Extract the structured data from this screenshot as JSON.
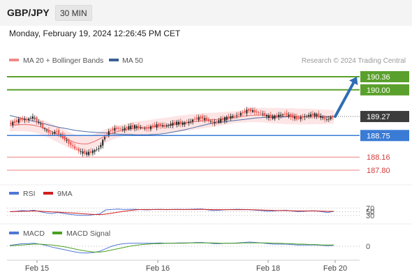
{
  "header": {
    "symbol": "GBP/JPY",
    "timeframe": "30 MIN"
  },
  "datetime": "Monday, February 19, 2024 12:26:45 PM CET",
  "legend": {
    "ma20_label": "MA 20 + Bollinger Bands",
    "ma50_label": "MA 50",
    "credit": "Research © 2024 Trading Central"
  },
  "rsi_legend": {
    "rsi": "RSI",
    "ma": "9MA"
  },
  "macd_legend": {
    "macd": "MACD",
    "signal": "MACD Signal"
  },
  "colors": {
    "candle_up": "#1a1a1a",
    "candle_down": "#e8504a",
    "ma20": "#e86b6b",
    "ma50": "#4f6fa8",
    "bollinger_fill": "#fde0e0",
    "resistance": "#5aa02c",
    "pivot": "#3a7bd5",
    "support": "#f08080",
    "current_price_bg": "#3c3c3c",
    "arrow": "#2e6db4",
    "rsi": "#4f77d6",
    "rsi_ma": "#d02020",
    "macd": "#4f77d6",
    "macd_signal": "#4aa020"
  },
  "chart_data": [
    {
      "type": "candlestick",
      "name": "price",
      "x_ticks": [
        "Feb 15",
        "Feb 16",
        "Feb 18",
        "Feb 20"
      ],
      "ylim": [
        187.4,
        190.55
      ],
      "close_series": [
        189.06,
        189.12,
        189.2,
        189.18,
        189.26,
        189.1,
        188.92,
        188.8,
        188.86,
        188.7,
        188.55,
        188.4,
        188.3,
        188.26,
        188.32,
        188.4,
        188.72,
        188.9,
        188.95,
        188.92,
        188.98,
        189.0,
        188.96,
        188.94,
        189.0,
        189.04,
        189.0,
        189.06,
        189.1,
        189.08,
        189.12,
        189.2,
        189.24,
        189.18,
        189.1,
        189.15,
        189.22,
        189.26,
        189.3,
        189.38,
        189.45,
        189.4,
        189.36,
        189.28,
        189.25,
        189.3,
        189.34,
        189.28,
        189.22,
        189.25,
        189.3,
        189.33,
        189.26,
        189.18,
        189.27
      ],
      "ma20": [
        189.02,
        189.04,
        189.05,
        189.05,
        189.03,
        188.99,
        188.93,
        188.86,
        188.78,
        188.7,
        188.62,
        188.55,
        188.52,
        188.52,
        188.58,
        188.66,
        188.74,
        188.81,
        188.86,
        188.9,
        188.93,
        188.95,
        188.96,
        188.97,
        188.99,
        189.01,
        189.02,
        189.04,
        189.07,
        189.09,
        189.11,
        189.13,
        189.15,
        189.17,
        189.18,
        189.2,
        189.22,
        189.24,
        189.26,
        189.28,
        189.3,
        189.31,
        189.31,
        189.3,
        189.29,
        189.29,
        189.28,
        189.28,
        189.27,
        189.27,
        189.27,
        189.27,
        189.26,
        189.26,
        189.26
      ],
      "ma50": [
        189.3,
        189.26,
        189.22,
        189.18,
        189.14,
        189.1,
        189.06,
        189.02,
        188.98,
        188.95,
        188.92,
        188.89,
        188.87,
        188.85,
        188.84,
        188.83,
        188.82,
        188.8,
        188.79,
        188.78,
        188.78,
        188.77,
        188.77,
        188.77,
        188.78,
        188.79,
        188.81,
        188.84,
        188.87,
        188.9,
        188.94,
        188.98,
        189.02,
        189.06,
        189.09,
        189.11,
        189.13,
        189.15,
        189.17,
        189.19,
        189.21,
        189.23,
        189.24,
        189.25,
        189.25,
        189.26,
        189.26,
        189.27,
        189.27,
        189.27,
        189.27,
        189.27,
        189.27,
        189.27,
        189.27
      ],
      "levels": [
        {
          "role": "resistance",
          "value": 190.36,
          "label": "190.36"
        },
        {
          "role": "resistance",
          "value": 190.0,
          "label": "190.00"
        },
        {
          "role": "current",
          "value": 189.27,
          "label": "189.27"
        },
        {
          "role": "pivot",
          "value": 188.75,
          "label": "188.75"
        },
        {
          "role": "support",
          "value": 188.16,
          "label": "188.16"
        },
        {
          "role": "support",
          "value": 187.8,
          "label": "187.80"
        }
      ],
      "forecast_arrow": {
        "from": 189.27,
        "to": 190.36
      }
    },
    {
      "type": "line",
      "name": "rsi",
      "y_ticks": [
        70,
        50,
        30
      ],
      "ylim": [
        0,
        100
      ],
      "series": [
        {
          "values": [
            50,
            52,
            56,
            54,
            58,
            50,
            44,
            40,
            46,
            40,
            36,
            32,
            30,
            30,
            34,
            38,
            60,
            62,
            64,
            62,
            63,
            63,
            61,
            60,
            62,
            63,
            61,
            62,
            63,
            62,
            63,
            64,
            65,
            60,
            56,
            58,
            61,
            62,
            63,
            62,
            61,
            58,
            56,
            52,
            54,
            56,
            58,
            54,
            50,
            52,
            54,
            55,
            50,
            46,
            52
          ]
        },
        {
          "values": [
            50,
            51,
            52,
            53,
            54,
            53,
            51,
            49,
            48,
            46,
            44,
            42,
            39,
            37,
            35,
            34,
            37,
            42,
            47,
            52,
            56,
            60,
            62,
            62,
            62,
            62,
            62,
            62,
            62,
            62,
            62,
            62,
            63,
            62,
            61,
            61,
            61,
            61,
            61,
            61,
            61,
            60,
            59,
            58,
            57,
            56,
            56,
            55,
            54,
            54,
            54,
            54,
            53,
            52,
            52
          ]
        }
      ]
    },
    {
      "type": "line",
      "name": "macd",
      "y_ticks": [
        0
      ],
      "series": [
        {
          "values": [
            0.02,
            0.04,
            0.06,
            0.06,
            0.07,
            0.05,
            0.02,
            -0.02,
            -0.05,
            -0.08,
            -0.11,
            -0.14,
            -0.16,
            -0.16,
            -0.15,
            -0.12,
            -0.06,
            0.0,
            0.04,
            0.06,
            0.07,
            0.07,
            0.07,
            0.07,
            0.07,
            0.08,
            0.07,
            0.07,
            0.08,
            0.08,
            0.08,
            0.09,
            0.09,
            0.08,
            0.06,
            0.06,
            0.07,
            0.07,
            0.08,
            0.09,
            0.1,
            0.09,
            0.08,
            0.06,
            0.05,
            0.05,
            0.05,
            0.04,
            0.03,
            0.03,
            0.03,
            0.03,
            0.02,
            0.01,
            0.02
          ]
        },
        {
          "values": [
            0.01,
            0.02,
            0.03,
            0.04,
            0.05,
            0.05,
            0.04,
            0.03,
            0.01,
            -0.01,
            -0.04,
            -0.07,
            -0.1,
            -0.12,
            -0.14,
            -0.14,
            -0.12,
            -0.09,
            -0.06,
            -0.03,
            0.0,
            0.02,
            0.04,
            0.05,
            0.06,
            0.06,
            0.07,
            0.07,
            0.07,
            0.07,
            0.08,
            0.08,
            0.08,
            0.08,
            0.08,
            0.07,
            0.07,
            0.07,
            0.07,
            0.08,
            0.08,
            0.08,
            0.08,
            0.08,
            0.07,
            0.07,
            0.06,
            0.06,
            0.05,
            0.05,
            0.04,
            0.04,
            0.03,
            0.03,
            0.03
          ]
        }
      ]
    }
  ]
}
